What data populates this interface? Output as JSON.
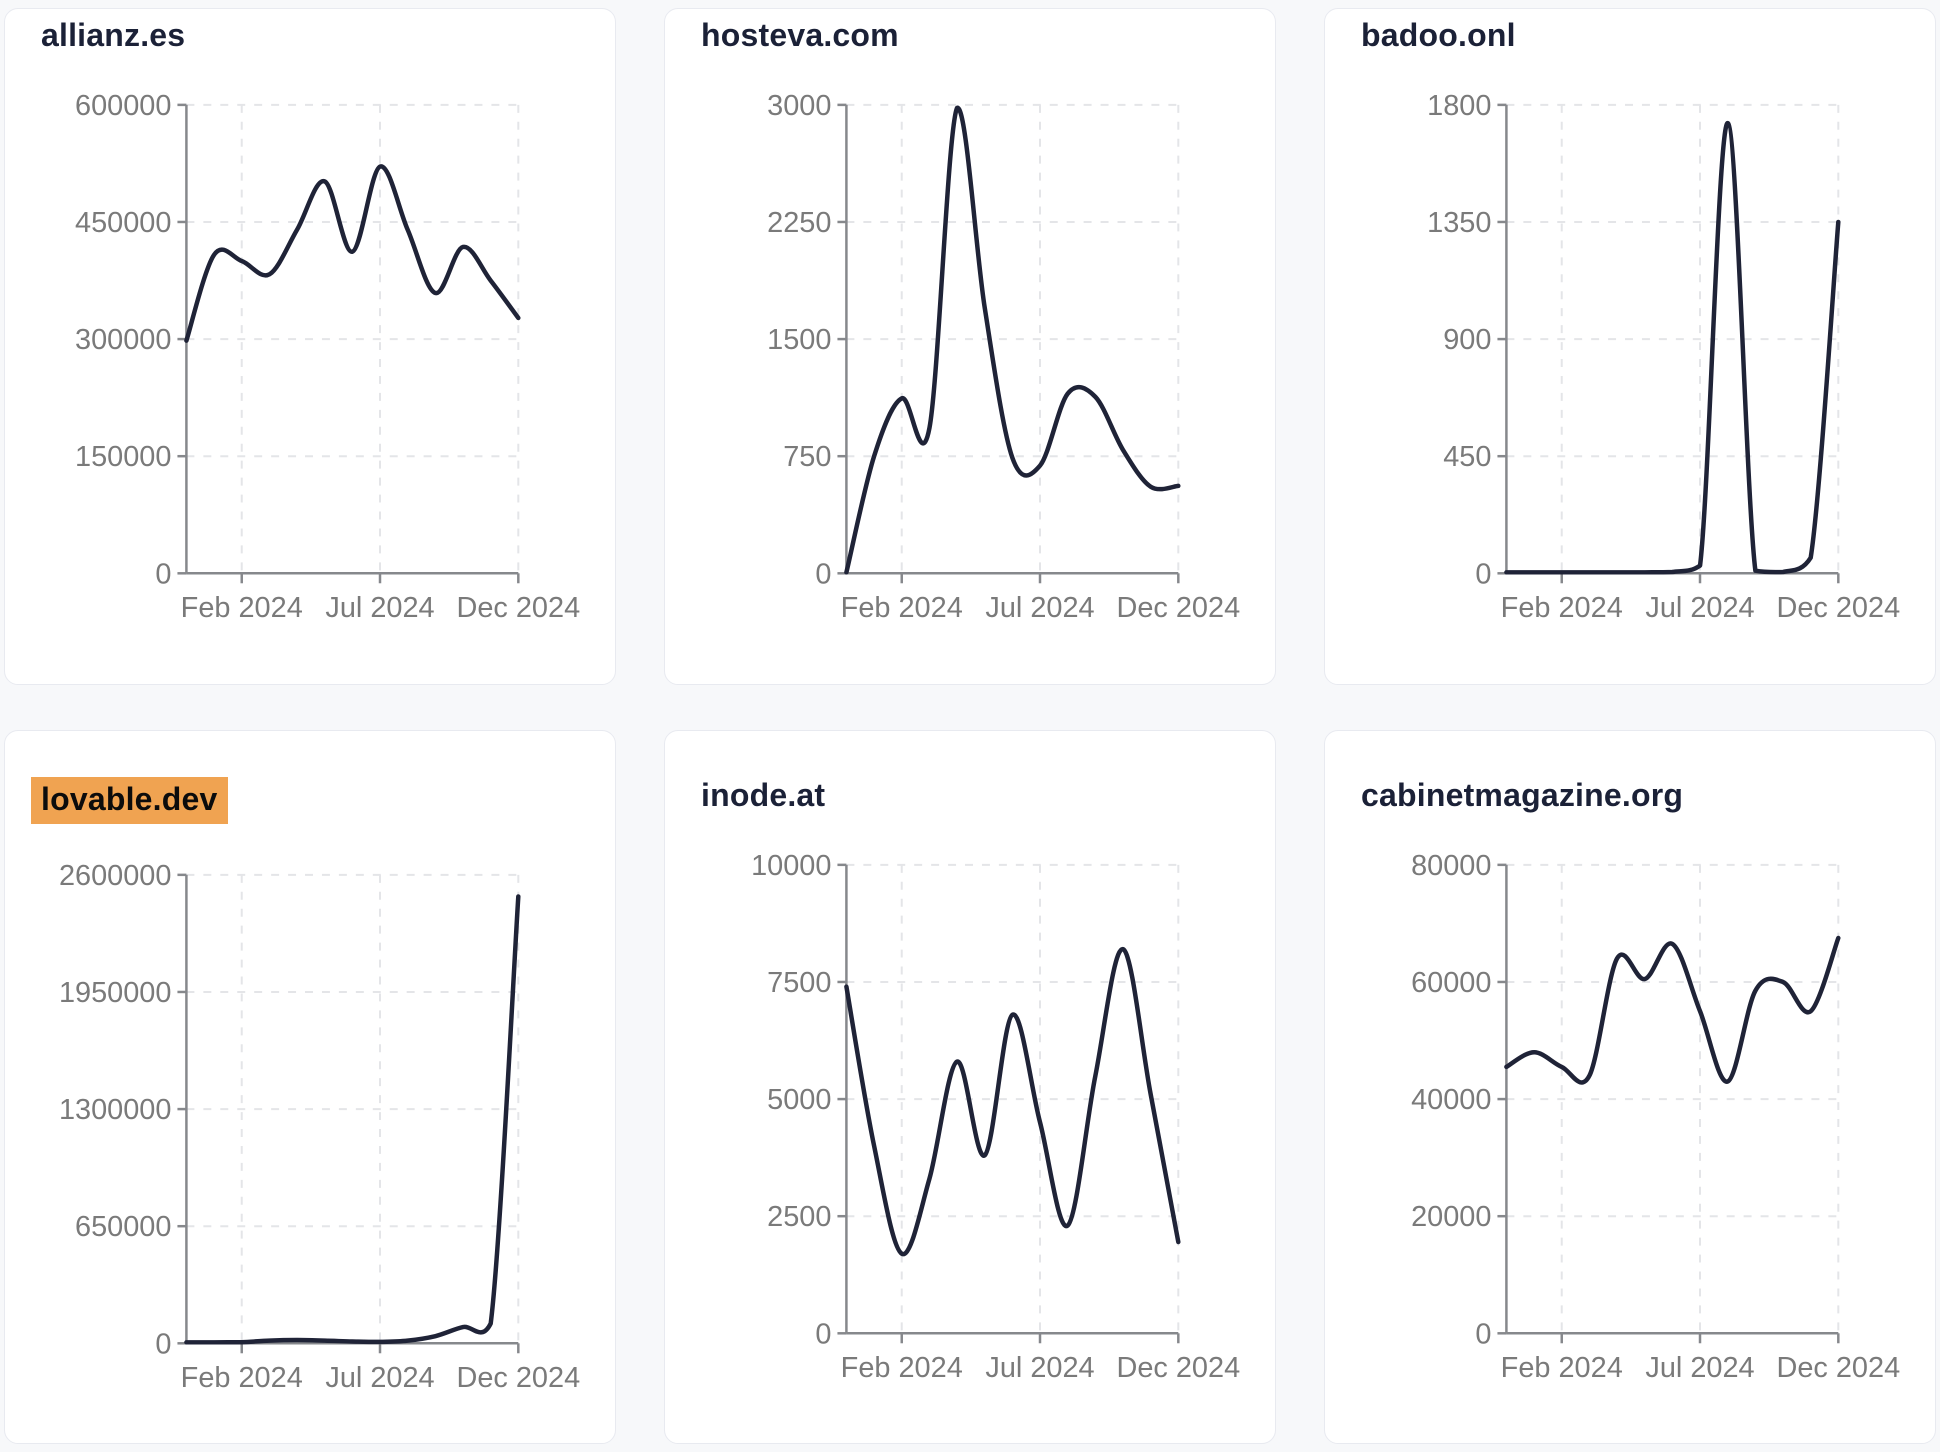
{
  "page": {
    "background": "#f7f8fa",
    "card_background": "#ffffff",
    "card_border_color": "#e8eaf0",
    "title_color": "#1b2137",
    "line_color": "#1f2337",
    "axis_color": "#86888c",
    "tick_text_color": "#7a7a7a",
    "gridline_color": "#e4e5e8",
    "highlight_color": "#f0a351"
  },
  "x_axis": {
    "tick_labels": [
      "Feb 2024",
      "Jul 2024",
      "Dec 2024"
    ],
    "tick_positions": [
      0.1667,
      0.5833,
      1.0
    ]
  },
  "chart_data": [
    {
      "type": "line",
      "title": "allianz.es",
      "highlighted": false,
      "xlabel": "",
      "ylabel": "",
      "ylim": [
        0,
        600000
      ],
      "y_ticks": [
        0,
        150000,
        300000,
        450000,
        600000
      ],
      "x_tick_labels": [
        "Feb 2024",
        "Jul 2024",
        "Dec 2024"
      ],
      "grid": true,
      "categories": [
        "Dec 2023",
        "Jan 2024",
        "Feb 2024",
        "Mar 2024",
        "Apr 2024",
        "May 2024",
        "Jun 2024",
        "Jul 2024",
        "Aug 2024",
        "Sep 2024",
        "Oct 2024",
        "Nov 2024",
        "Dec 2024"
      ],
      "values": [
        298000,
        408000,
        400000,
        383000,
        440000,
        502000,
        412000,
        521000,
        440000,
        359000,
        418000,
        375000,
        327000
      ]
    },
    {
      "type": "line",
      "title": "hosteva.com",
      "highlighted": false,
      "xlabel": "",
      "ylabel": "",
      "ylim": [
        0,
        3000
      ],
      "y_ticks": [
        0,
        750,
        1500,
        2250,
        3000
      ],
      "x_tick_labels": [
        "Feb 2024",
        "Jul 2024",
        "Dec 2024"
      ],
      "grid": true,
      "categories": [
        "Dec 2023",
        "Jan 2024",
        "Feb 2024",
        "Mar 2024",
        "Apr 2024",
        "May 2024",
        "Jun 2024",
        "Jul 2024",
        "Aug 2024",
        "Sep 2024",
        "Oct 2024",
        "Nov 2024",
        "Dec 2024"
      ],
      "values": [
        0,
        750,
        1120,
        930,
        2980,
        1700,
        740,
        690,
        1150,
        1130,
        790,
        555,
        560
      ]
    },
    {
      "type": "line",
      "title": "badoo.onl",
      "highlighted": false,
      "xlabel": "",
      "ylabel": "",
      "ylim": [
        0,
        1800
      ],
      "y_ticks": [
        0,
        450,
        900,
        1350,
        1800
      ],
      "x_tick_labels": [
        "Feb 2024",
        "Jul 2024",
        "Dec 2024"
      ],
      "grid": true,
      "categories": [
        "Dec 2023",
        "Jan 2024",
        "Feb 2024",
        "Mar 2024",
        "Apr 2024",
        "May 2024",
        "Jun 2024",
        "Jul 2024",
        "Aug 2024",
        "Sep 2024",
        "Oct 2024",
        "Nov 2024",
        "Dec 2024"
      ],
      "values": [
        0,
        0,
        0,
        0,
        0,
        0,
        5,
        30,
        1730,
        10,
        5,
        60,
        1350
      ]
    },
    {
      "type": "line",
      "title": "lovable.dev",
      "highlighted": true,
      "xlabel": "",
      "ylabel": "",
      "ylim": [
        0,
        2600000
      ],
      "y_ticks": [
        0,
        650000,
        1300000,
        1950000,
        2600000
      ],
      "x_tick_labels": [
        "Feb 2024",
        "Jul 2024",
        "Dec 2024"
      ],
      "grid": true,
      "categories": [
        "Dec 2023",
        "Jan 2024",
        "Feb 2024",
        "Mar 2024",
        "Apr 2024",
        "May 2024",
        "Jun 2024",
        "Jul 2024",
        "Aug 2024",
        "Sep 2024",
        "Oct 2024",
        "Nov 2024",
        "Dec 2024"
      ],
      "values": [
        5000,
        4000,
        6000,
        15000,
        18000,
        15000,
        10000,
        8000,
        15000,
        40000,
        90000,
        110000,
        2480000
      ]
    },
    {
      "type": "line",
      "title": "inode.at",
      "highlighted": false,
      "xlabel": "",
      "ylabel": "",
      "ylim": [
        0,
        10000
      ],
      "y_ticks": [
        0,
        2500,
        5000,
        7500,
        10000
      ],
      "x_tick_labels": [
        "Feb 2024",
        "Jul 2024",
        "Dec 2024"
      ],
      "grid": true,
      "categories": [
        "Dec 2023",
        "Jan 2024",
        "Feb 2024",
        "Mar 2024",
        "Apr 2024",
        "May 2024",
        "Jun 2024",
        "Jul 2024",
        "Aug 2024",
        "Sep 2024",
        "Oct 2024",
        "Nov 2024",
        "Dec 2024"
      ],
      "values": [
        7400,
        4000,
        1700,
        3300,
        5800,
        3800,
        6800,
        4500,
        2300,
        5500,
        8200,
        5100,
        1950
      ]
    },
    {
      "type": "line",
      "title": "cabinetmagazine.org",
      "highlighted": false,
      "xlabel": "",
      "ylabel": "",
      "ylim": [
        0,
        80000
      ],
      "y_ticks": [
        0,
        20000,
        40000,
        60000,
        80000
      ],
      "x_tick_labels": [
        "Feb 2024",
        "Jul 2024",
        "Dec 2024"
      ],
      "grid": true,
      "categories": [
        "Dec 2023",
        "Jan 2024",
        "Feb 2024",
        "Mar 2024",
        "Apr 2024",
        "May 2024",
        "Jun 2024",
        "Jul 2024",
        "Aug 2024",
        "Sep 2024",
        "Oct 2024",
        "Nov 2024",
        "Dec 2024"
      ],
      "values": [
        45500,
        48000,
        45500,
        44000,
        64000,
        60500,
        66500,
        55000,
        43000,
        58500,
        60000,
        55000,
        67500
      ]
    }
  ]
}
